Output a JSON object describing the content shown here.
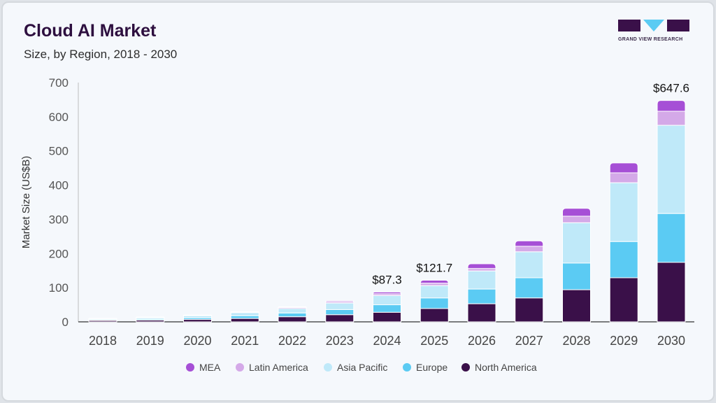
{
  "header": {
    "title": "Cloud AI Market",
    "subtitle": "Size, by Region, 2018 - 2030",
    "logo_text": "GRAND VIEW RESEARCH"
  },
  "chart_data": {
    "type": "bar",
    "stacked": true,
    "title": "Cloud AI Market",
    "subtitle": "Size, by Region, 2018 - 2030",
    "xlabel": "",
    "ylabel": "Market Size (US$B)",
    "ylim": [
      0,
      700
    ],
    "yticks": [
      0,
      100,
      200,
      300,
      400,
      500,
      600,
      700
    ],
    "grid": false,
    "legend_position": "bottom",
    "categories": [
      "2018",
      "2019",
      "2020",
      "2021",
      "2022",
      "2023",
      "2024",
      "2025",
      "2026",
      "2027",
      "2028",
      "2029",
      "2030"
    ],
    "series": [
      {
        "name": "North America",
        "color": "#3a1049",
        "values": [
          4,
          5,
          7,
          10,
          15,
          21,
          28,
          39,
          53,
          70,
          94,
          129,
          174
        ]
      },
      {
        "name": "Europe",
        "color": "#5bcbf3",
        "values": [
          2,
          3,
          5,
          8,
          11,
          15,
          22,
          31,
          43,
          59,
          78,
          106,
          143
        ]
      },
      {
        "name": "Asia Pacific",
        "color": "#bfe9f9",
        "values": [
          3,
          4,
          6,
          9,
          13,
          19,
          27,
          36,
          53,
          76,
          118,
          172,
          258
        ]
      },
      {
        "name": "Latin America",
        "color": "#d4a9e8",
        "values": [
          0.5,
          1,
          1,
          2,
          3,
          4,
          5,
          7,
          7,
          16,
          19,
          29,
          41
        ]
      },
      {
        "name": "MEA",
        "color": "#a64fd6",
        "values": [
          0.5,
          1,
          1,
          1,
          2,
          3,
          5.3,
          8.7,
          14,
          16,
          23,
          29,
          31.6
        ]
      }
    ],
    "annotations": [
      {
        "category": "2024",
        "text": "$87.3"
      },
      {
        "category": "2025",
        "text": "$121.7"
      },
      {
        "category": "2030",
        "text": "$647.6"
      }
    ],
    "legend_order": [
      "MEA",
      "Latin America",
      "Asia Pacific",
      "Europe",
      "North America"
    ]
  }
}
